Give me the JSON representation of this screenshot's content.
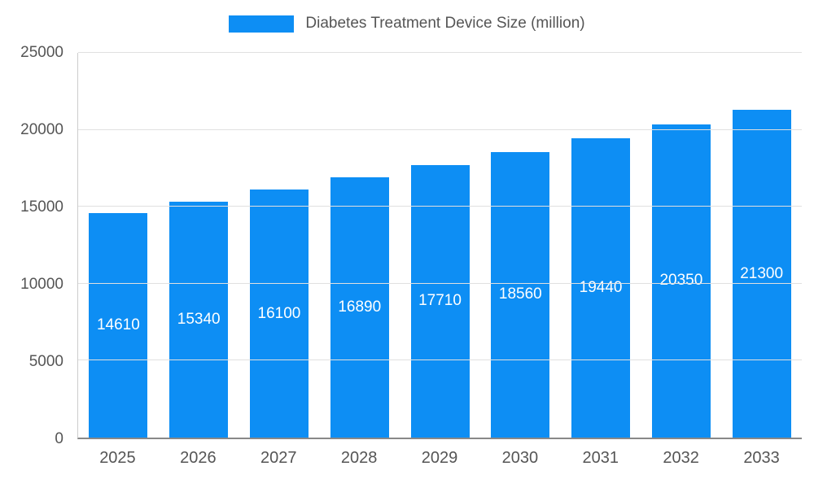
{
  "legend": {
    "label": "Diabetes Treatment Device Size (million)"
  },
  "colors": {
    "bar": "#0d8ef4",
    "grid": "#e0e0e0",
    "axis_text": "#555555",
    "value_label": "#ffffff"
  },
  "chart_data": {
    "type": "bar",
    "categories": [
      "2025",
      "2026",
      "2027",
      "2028",
      "2029",
      "2030",
      "2031",
      "2032",
      "2033"
    ],
    "values": [
      14610,
      15340,
      16100,
      16890,
      17710,
      18560,
      19440,
      20350,
      21300
    ],
    "value_labels": [
      "14610",
      "15340",
      "16100",
      "16890",
      "17710",
      "18560",
      "19440",
      "20350",
      "21300"
    ],
    "title": "Diabetes Treatment Device Size (million)",
    "xlabel": "",
    "ylabel": "",
    "ylim": [
      0,
      25000
    ],
    "yticks": [
      0,
      5000,
      10000,
      15000,
      20000,
      25000
    ],
    "ytick_labels": [
      "0",
      "5000",
      "10000",
      "15000",
      "20000",
      "25000"
    ],
    "grid": true,
    "legend_position": "top"
  }
}
